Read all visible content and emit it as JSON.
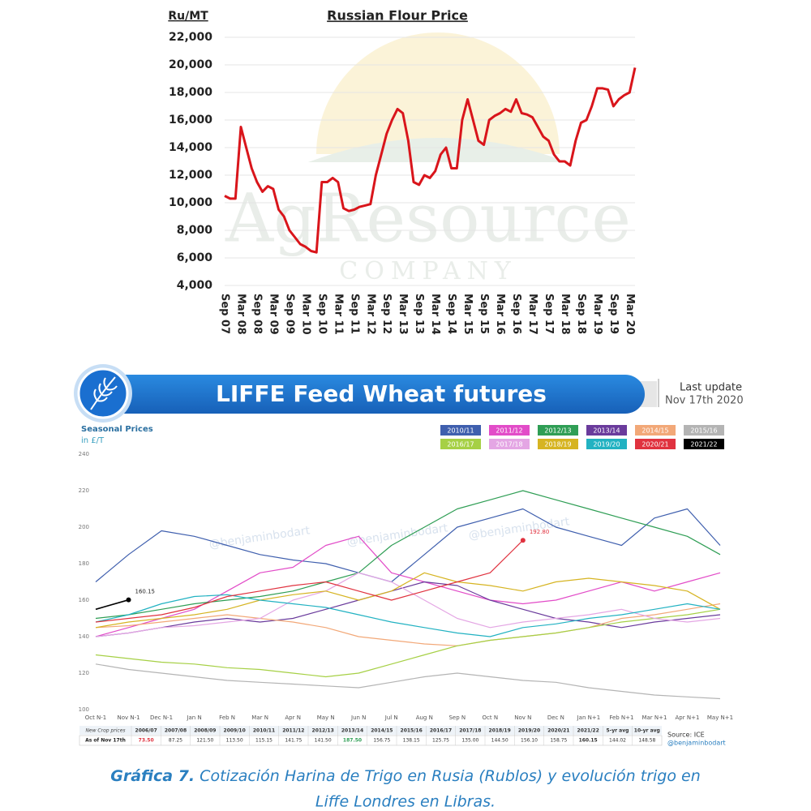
{
  "chart_data": [
    {
      "type": "line",
      "title": "Russian Flour Price",
      "y_label": "Ru/MT",
      "color": "#d9151b",
      "grid": true,
      "watermark": [
        "AgResource",
        "COMPANY"
      ],
      "categories": [
        "Sep 07",
        null,
        null,
        "Mar 08",
        null,
        null,
        "Sep 08",
        null,
        null,
        "Mar 09",
        null,
        null,
        "Sep 09",
        null,
        null,
        "Mar 10",
        null,
        null,
        "Sep 10",
        null,
        null,
        "Mar 11",
        null,
        null,
        "Sep 11",
        null,
        null,
        "Mar 12",
        null,
        null,
        "Sep 12",
        null,
        null,
        "Mar 13",
        null,
        null,
        "Sep 13",
        null,
        null,
        "Mar 14",
        null,
        null,
        "Sep 14",
        null,
        null,
        "Mar 15",
        null,
        null,
        "Sep 15",
        null,
        null,
        "Mar 16",
        null,
        null,
        "Sep 16",
        null,
        null,
        "Mar 17",
        null,
        null,
        "Sep 17",
        null,
        null,
        "Mar 18",
        null,
        null,
        "Sep 18",
        null,
        null,
        "Mar 19",
        null,
        null,
        "Sep 19",
        null,
        null,
        "Mar 20",
        null
      ],
      "values": [
        10500,
        10300,
        10300,
        15500,
        14000,
        12500,
        11500,
        10800,
        11200,
        11000,
        9500,
        9000,
        8000,
        7500,
        7000,
        6800,
        6500,
        6400,
        11500,
        11500,
        11800,
        11500,
        9600,
        9400,
        9500,
        9700,
        9800,
        9900,
        12000,
        13500,
        15000,
        16000,
        16800,
        16500,
        14500,
        11500,
        11300,
        12000,
        11800,
        12300,
        13500,
        14000,
        12500,
        12500,
        16000,
        17500,
        16000,
        14500,
        14200,
        16000,
        16300,
        16500,
        16800,
        16600,
        17500,
        16500,
        16400,
        16200,
        15500,
        14800,
        14500,
        13500,
        13000,
        13000,
        12700,
        14500,
        15800,
        16000,
        17000,
        18300,
        18300,
        18200,
        17000,
        17500,
        17800,
        18000,
        19800
      ],
      "ylim": [
        4000,
        22000
      ],
      "yticks": [
        {
          "value": 4000,
          "label": "4,000"
        },
        {
          "value": 6000,
          "label": "6,000"
        },
        {
          "value": 8000,
          "label": "8,000"
        },
        {
          "value": 10000,
          "label": "10,000"
        },
        {
          "value": 12000,
          "label": "12,000"
        },
        {
          "value": 14000,
          "label": "14,000"
        },
        {
          "value": 16000,
          "label": "16,000"
        },
        {
          "value": 18000,
          "label": "18,000"
        },
        {
          "value": 20000,
          "label": "20,000"
        },
        {
          "value": 22000,
          "label": "22,000"
        }
      ]
    },
    {
      "type": "line",
      "title": "LIFFE Feed Wheat futures",
      "subtitle": "Seasonal Prices",
      "y_label": "in £/T",
      "last_update_label": "Last update",
      "last_update": "Nov 17th 2020",
      "watermark": "@benjaminbodart",
      "grid": false,
      "legend": "top-right",
      "categories": [
        "Oct N-1",
        "Nov N-1",
        "Dec N-1",
        "Jan N",
        "Feb N",
        "Mar N",
        "Apr N",
        "May N",
        "Jun N",
        "Jul N",
        "Aug N",
        "Sep N",
        "Oct N",
        "Nov N",
        "Dec N",
        "Jan N+1",
        "Feb N+1",
        "Mar N+1",
        "Apr N+1",
        "May N+1"
      ],
      "ylim": [
        100,
        240
      ],
      "yticks": [
        100,
        120,
        140,
        160,
        180,
        200,
        220,
        240
      ],
      "series": [
        {
          "name": "2010/11",
          "color": "#3f5fae",
          "values": [
            170,
            185,
            198,
            195,
            190,
            185,
            182,
            180,
            175,
            170,
            185,
            200,
            205,
            210,
            200,
            195,
            190,
            205,
            210,
            190
          ]
        },
        {
          "name": "2011/12",
          "color": "#e24cc8",
          "values": [
            140,
            145,
            150,
            155,
            165,
            175,
            178,
            190,
            195,
            175,
            170,
            165,
            160,
            158,
            160,
            165,
            170,
            165,
            170,
            175
          ]
        },
        {
          "name": "2012/13",
          "color": "#2f9e55",
          "values": [
            150,
            152,
            155,
            158,
            160,
            162,
            165,
            170,
            175,
            190,
            200,
            210,
            215,
            220,
            215,
            210,
            205,
            200,
            195,
            185
          ]
        },
        {
          "name": "2013/14",
          "color": "#6a3b9c",
          "values": [
            140,
            142,
            145,
            148,
            150,
            148,
            150,
            155,
            160,
            165,
            170,
            168,
            160,
            155,
            150,
            148,
            145,
            148,
            150,
            152
          ]
        },
        {
          "name": "2014/15",
          "color": "#f2a878",
          "values": [
            145,
            146,
            148,
            150,
            152,
            150,
            148,
            145,
            140,
            138,
            136,
            135,
            138,
            140,
            142,
            145,
            150,
            152,
            155,
            158
          ]
        },
        {
          "name": "2015/16",
          "color": "#b4b4b4",
          "values": [
            125,
            122,
            120,
            118,
            116,
            115,
            114,
            113,
            112,
            115,
            118,
            120,
            118,
            116,
            115,
            112,
            110,
            108,
            107,
            106
          ]
        },
        {
          "name": "2016/17",
          "color": "#a6d045",
          "values": [
            130,
            128,
            126,
            125,
            123,
            122,
            120,
            118,
            120,
            125,
            130,
            135,
            138,
            140,
            142,
            145,
            148,
            150,
            152,
            155
          ]
        },
        {
          "name": "2017/18",
          "color": "#e4a6e4",
          "values": [
            140,
            142,
            145,
            146,
            148,
            150,
            160,
            165,
            175,
            170,
            160,
            150,
            145,
            148,
            150,
            152,
            155,
            150,
            148,
            150
          ]
        },
        {
          "name": "2018/19",
          "color": "#d6b422",
          "values": [
            145,
            148,
            150,
            152,
            155,
            160,
            163,
            165,
            160,
            165,
            175,
            170,
            168,
            165,
            170,
            172,
            170,
            168,
            165,
            155
          ]
        },
        {
          "name": "2019/20",
          "color": "#22b2c2",
          "values": [
            148,
            152,
            158,
            162,
            163,
            160,
            158,
            156,
            152,
            148,
            145,
            142,
            140,
            145,
            147,
            150,
            152,
            155,
            158,
            155
          ]
        },
        {
          "name": "2020/21",
          "color": "#e0323f",
          "label_last": true,
          "values": [
            148,
            150,
            152,
            156,
            162,
            165,
            168,
            170,
            165,
            160,
            165,
            170,
            175,
            192.8,
            null,
            null,
            null,
            null,
            null,
            null
          ],
          "value_labels": [
            null,
            null,
            null,
            null,
            null,
            null,
            null,
            null,
            null,
            null,
            null,
            null,
            null,
            "192.80",
            null,
            null,
            null,
            null,
            null,
            null
          ]
        },
        {
          "name": "2021/22",
          "color": "#000000",
          "label_last": true,
          "values": [
            155,
            160.15,
            null,
            null,
            null,
            null,
            null,
            null,
            null,
            null,
            null,
            null,
            null,
            null,
            null,
            null,
            null,
            null,
            null,
            null
          ]
        }
      ]
    }
  ],
  "table": {
    "header_label": "New Crop prices",
    "row_label": "As of Nov 17th",
    "columns": [
      "2006/07",
      "2007/08",
      "2008/09",
      "2009/10",
      "2010/11",
      "2011/12",
      "2012/13",
      "2013/14",
      "2014/15",
      "2015/16",
      "2016/17",
      "2017/18",
      "2018/19",
      "2019/20",
      "2020/21",
      "2021/22",
      "5-yr avg",
      "10-yr avg"
    ],
    "values": [
      "73.50",
      "87.25",
      "121.50",
      "113.50",
      "115.15",
      "141.75",
      "141.50",
      "187.50",
      "156.75",
      "138.15",
      "125.75",
      "135.00",
      "144.50",
      "156.10",
      "158.75",
      "160.15",
      "144.02",
      "148.58"
    ],
    "source": "Source: ICE",
    "credit": "@benjaminbodart"
  },
  "caption": {
    "label": "Gráfica 7.",
    "text": "Cotización Harina de Trigo en Rusia (Rublos) y evolución trigo en",
    "text2": "Liffe Londres en Libras."
  }
}
